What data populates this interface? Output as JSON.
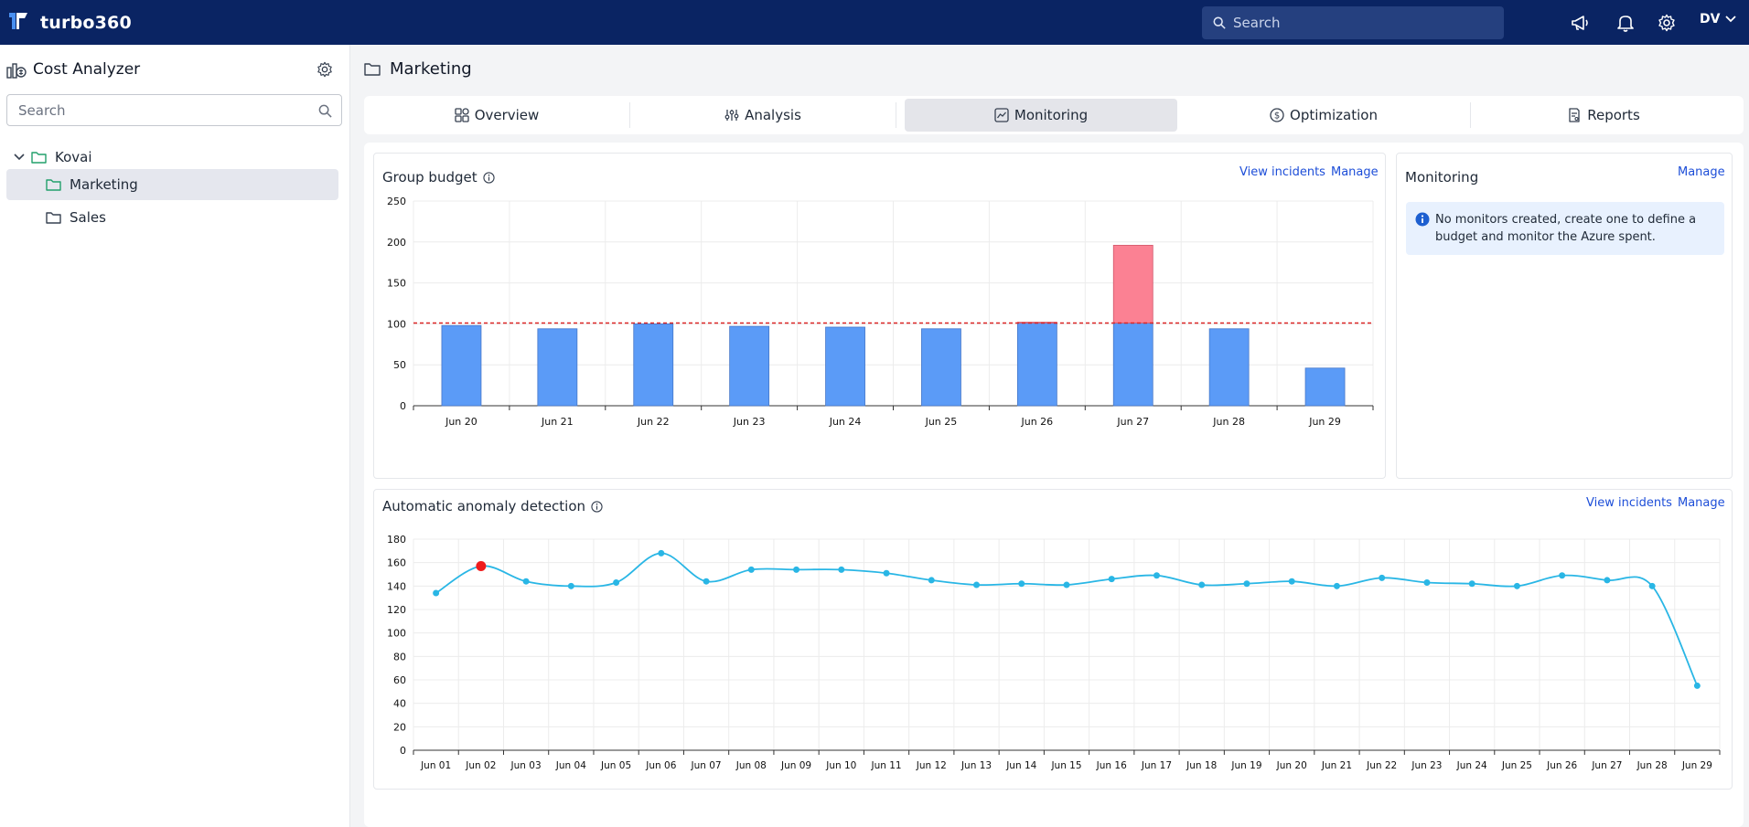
{
  "app": {
    "name": "turbo360"
  },
  "topbar": {
    "search_placeholder": "Search",
    "user_initials": "DV",
    "icons": [
      "megaphone-icon",
      "bell-icon",
      "gear-icon"
    ]
  },
  "sidebar": {
    "title": "Cost Analyzer",
    "search_placeholder": "Search",
    "tree": [
      {
        "label": "Kovai",
        "expanded": true,
        "level": 0
      },
      {
        "label": "Marketing",
        "selected": true,
        "level": 1
      },
      {
        "label": "Sales",
        "level": 1
      }
    ]
  },
  "page": {
    "title": "Marketing"
  },
  "tabs": [
    {
      "label": "Overview",
      "icon": "overview-icon"
    },
    {
      "label": "Analysis",
      "icon": "analysis-icon"
    },
    {
      "label": "Monitoring",
      "icon": "monitoring-icon",
      "active": true
    },
    {
      "label": "Optimization",
      "icon": "dollar-icon"
    },
    {
      "label": "Reports",
      "icon": "reports-icon"
    }
  ],
  "group_budget": {
    "title": "Group budget",
    "view_incidents": "View incidents",
    "manage": "Manage"
  },
  "monitoring": {
    "title": "Monitoring",
    "manage": "Manage",
    "notice": "No monitors created, create one to define a budget and monitor the Azure spent."
  },
  "anomaly": {
    "title": "Automatic anomaly detection",
    "view_incidents": "View incidents",
    "manage": "Manage"
  },
  "colors": {
    "topbar": "#0a2463",
    "bar": "#5b9bf7",
    "overspend": "#fb8193",
    "budget_line": "#dc2626",
    "anomaly_line": "#29b6e5",
    "anomaly_point": "#ef1c1c",
    "link": "#1d4ed8"
  },
  "chart_data": [
    {
      "type": "bar",
      "categories": [
        "Jun 20",
        "Jun 21",
        "Jun 22",
        "Jun 23",
        "Jun 24",
        "Jun 25",
        "Jun 26",
        "Jun 27",
        "Jun 28",
        "Jun 29"
      ],
      "values": [
        98,
        94,
        100,
        97,
        96,
        94,
        102,
        196,
        94,
        46
      ],
      "budget": 101,
      "ylim": [
        0,
        250
      ],
      "yticks": [
        0,
        50,
        100,
        150,
        200,
        250
      ],
      "grid": true
    },
    {
      "type": "line",
      "categories": [
        "Jun 01",
        "Jun 02",
        "Jun 03",
        "Jun 04",
        "Jun 05",
        "Jun 06",
        "Jun 07",
        "Jun 08",
        "Jun 09",
        "Jun 10",
        "Jun 11",
        "Jun 12",
        "Jun 13",
        "Jun 14",
        "Jun 15",
        "Jun 16",
        "Jun 17",
        "Jun 18",
        "Jun 19",
        "Jun 20",
        "Jun 21",
        "Jun 22",
        "Jun 23",
        "Jun 24",
        "Jun 25",
        "Jun 26",
        "Jun 27",
        "Jun 28",
        "Jun 29"
      ],
      "values": [
        134,
        157,
        144,
        140,
        143,
        168,
        144,
        154,
        154,
        154,
        151,
        145,
        141,
        142,
        141,
        146,
        149,
        141,
        142,
        144,
        140,
        147,
        143,
        142,
        140,
        149,
        145,
        140,
        55
      ],
      "anomalies": [
        1
      ],
      "ylim": [
        0,
        180
      ],
      "yticks": [
        0,
        20,
        40,
        60,
        80,
        100,
        120,
        140,
        160,
        180
      ],
      "grid": true
    }
  ]
}
